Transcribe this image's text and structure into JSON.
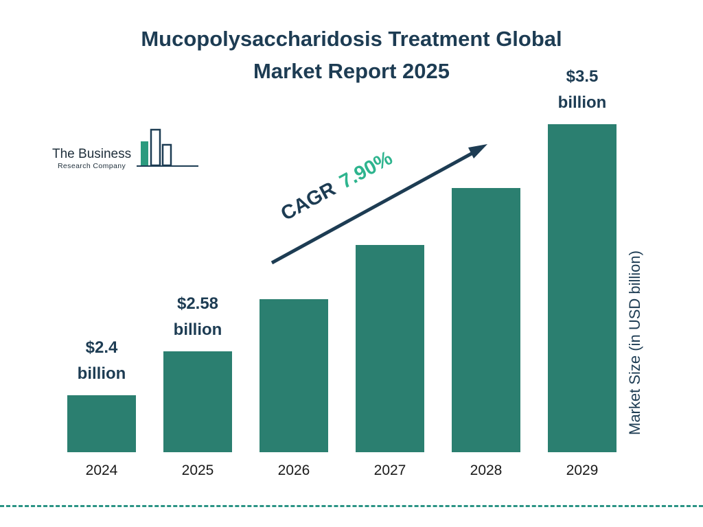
{
  "title_lines": [
    "Mucopolysaccharidosis Treatment Global",
    "Market Report 2025"
  ],
  "logo": {
    "line1": "The Business",
    "line2": "Research Company"
  },
  "cagr": {
    "prefix": "CAGR",
    "value": "7.90%"
  },
  "y_axis_label": "Market Size (in USD billion)",
  "colors": {
    "bar": "#2b7f70",
    "navy": "#1d3c53",
    "cagr_green": "#2eb48e",
    "dashed_line": "#2b9485",
    "axis_text": "#1a1a1a",
    "logo_teal": "#2b9a7e"
  },
  "chart_data": {
    "type": "bar",
    "title": "Mucopolysaccharidosis Treatment Global Market Report 2025",
    "categories": [
      "2024",
      "2025",
      "2026",
      "2027",
      "2028",
      "2029"
    ],
    "values": [
      2.4,
      2.58,
      2.79,
      3.01,
      3.24,
      3.5
    ],
    "unit": "USD billion",
    "bar_labels": [
      "$2.4 billion",
      "$2.58 billion",
      null,
      null,
      null,
      "$3.5 billion"
    ],
    "value_labels_shown_for": [
      "2024",
      "2025",
      "2029"
    ],
    "cagr_percent": 7.9,
    "xlabel": "",
    "ylabel": "Market Size (in USD billion)",
    "y_baseline": 2.17,
    "grid": false,
    "legend": "none",
    "bar_color": "#2b7f70"
  }
}
